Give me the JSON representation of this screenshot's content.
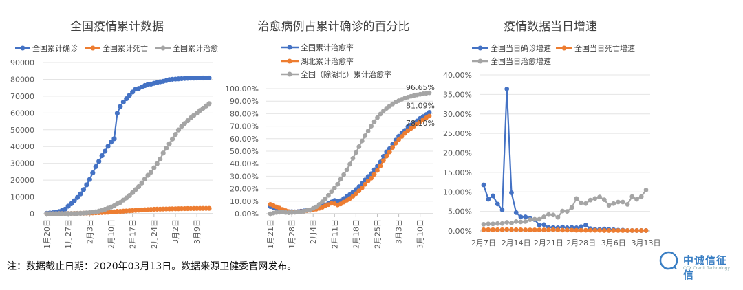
{
  "chart_data": [
    {
      "type": "line",
      "title": "全国疫情累计数据",
      "xlabel": "",
      "ylabel": "",
      "ylim": [
        0,
        90000
      ],
      "yticks": [
        "0",
        "10000",
        "20000",
        "30000",
        "40000",
        "50000",
        "60000",
        "70000",
        "80000",
        "90000"
      ],
      "xticks": [
        "1月20日",
        "1月27日",
        "2月3日",
        "2月10日",
        "2月17日",
        "2月24日",
        "3月2日",
        "3月9日"
      ],
      "legend_position": "top",
      "series": [
        {
          "name": "全国累计确诊",
          "color": "#4472c4",
          "values": [
            291,
            440,
            571,
            830,
            1287,
            1975,
            2744,
            4515,
            5974,
            7711,
            9692,
            11791,
            14380,
            17205,
            20438,
            24324,
            28018,
            31161,
            34546,
            37198,
            40171,
            42638,
            44653,
            59804,
            63851,
            66492,
            68500,
            70548,
            72436,
            74185,
            74576,
            75465,
            76288,
            76936,
            77150,
            77658,
            78064,
            78497,
            78824,
            79251,
            79824,
            80026,
            80151,
            80270,
            80409,
            80552,
            80651,
            80695,
            80735,
            80754,
            80778,
            80793,
            80813,
            80824
          ]
        },
        {
          "name": "全国累计死亡",
          "color": "#ed7d31",
          "values": [
            6,
            9,
            17,
            25,
            41,
            56,
            80,
            106,
            132,
            170,
            213,
            259,
            304,
            361,
            425,
            490,
            563,
            636,
            722,
            811,
            908,
            1016,
            1113,
            1367,
            1380,
            1523,
            1665,
            1770,
            1868,
            2004,
            2118,
            2236,
            2345,
            2442,
            2592,
            2663,
            2715,
            2744,
            2788,
            2835,
            2870,
            2912,
            2943,
            2981,
            3012,
            3042,
            3070,
            3097,
            3119,
            3136,
            3158,
            3169,
            3176,
            3189
          ]
        },
        {
          "name": "全国累计治愈",
          "color": "#a5a5a5",
          "values": [
            25,
            25,
            28,
            34,
            38,
            49,
            51,
            60,
            103,
            124,
            171,
            243,
            328,
            475,
            632,
            892,
            1153,
            1540,
            2050,
            2649,
            3281,
            3996,
            4740,
            5911,
            6723,
            8096,
            9419,
            10844,
            12552,
            14376,
            16155,
            18264,
            20659,
            22888,
            24734,
            27323,
            29745,
            32495,
            36117,
            39002,
            41625,
            44462,
            47204,
            49856,
            52045,
            53726,
            55404,
            57065,
            58600,
            59897,
            61475,
            62793,
            64111,
            65541
          ]
        }
      ]
    },
    {
      "type": "line",
      "title": "治愈病例占累计确诊的百分比",
      "ylim": [
        0,
        100
      ],
      "yticks": [
        "0.00%",
        "10.00%",
        "20.00%",
        "30.00%",
        "40.00%",
        "50.00%",
        "60.00%",
        "70.00%",
        "80.00%",
        "90.00%",
        "100.00%"
      ],
      "xticks": [
        "1月21日",
        "1月28日",
        "2月4日",
        "2月11日",
        "2月18日",
        "2月25日",
        "3月3日",
        "3月10日"
      ],
      "legend_position": "top",
      "end_labels": [
        "81.09%",
        "78.10%",
        "96.65%"
      ],
      "series": [
        {
          "name": "全国累计治愈率",
          "color": "#4472c4",
          "values": [
            5.7,
            4.9,
            4.1,
            3.0,
            2.5,
            1.9,
            1.3,
            1.7,
            1.6,
            1.8,
            2.1,
            2.3,
            2.8,
            3.1,
            3.7,
            4.1,
            4.9,
            5.9,
            7.1,
            8.2,
            9.4,
            10.6,
            9.9,
            10.5,
            12.2,
            13.8,
            15.4,
            17.3,
            19.4,
            21.7,
            24.2,
            27.1,
            29.8,
            32.0,
            35.2,
            38.1,
            41.4,
            46.0,
            49.5,
            52.1,
            55.6,
            58.9,
            62.0,
            64.6,
            66.7,
            69.6,
            70.9,
            72.6,
            74.2,
            76.3,
            77.7,
            79.4,
            81.09
          ]
        },
        {
          "name": "湖北累计治愈率",
          "color": "#ed7d31",
          "values": [
            7.5,
            6.5,
            5.5,
            4.5,
            3.5,
            2.5,
            1.8,
            1.6,
            1.5,
            1.6,
            1.8,
            2.0,
            2.4,
            2.7,
            3.2,
            3.6,
            4.3,
            5.2,
            6.3,
            7.3,
            8.3,
            8.0,
            7.0,
            7.8,
            9.3,
            10.7,
            12.2,
            14.0,
            16.0,
            18.3,
            20.7,
            23.5,
            26.2,
            28.4,
            31.5,
            34.6,
            38.2,
            42.5,
            46.0,
            49.4,
            53.0,
            56.4,
            59.2,
            61.8,
            64.2,
            66.5,
            68.2,
            70.0,
            71.9,
            73.6,
            75.2,
            76.7,
            78.1
          ]
        },
        {
          "name": "全国（除湖北）累计治愈率",
          "color": "#a5a5a5",
          "values": [
            0,
            0.5,
            1.0,
            1.2,
            1.3,
            1.0,
            0.8,
            1.0,
            1.1,
            1.3,
            1.6,
            2.0,
            2.6,
            3.2,
            4.3,
            5.5,
            7.5,
            9.5,
            12.0,
            14.7,
            17.7,
            20.6,
            23.5,
            27.6,
            31.2,
            35.1,
            39.6,
            44.3,
            48.9,
            53.6,
            58.2,
            62.4,
            66.2,
            70.0,
            73.6,
            76.8,
            79.7,
            82.2,
            84.3,
            86.1,
            87.8,
            89.2,
            90.4,
            91.5,
            92.4,
            93.2,
            93.9,
            94.5,
            95.0,
            95.5,
            95.9,
            96.3,
            96.65
          ]
        }
      ]
    },
    {
      "type": "line",
      "title": "疫情数据当日增速",
      "ylim": [
        0,
        40
      ],
      "yticks": [
        "0.00%",
        "5.00%",
        "10.00%",
        "15.00%",
        "20.00%",
        "25.00%",
        "30.00%",
        "35.00%",
        "40.00%"
      ],
      "xticks": [
        "2月7日",
        "2月14日",
        "2月21日",
        "2月28日",
        "3月6日",
        "3月13日"
      ],
      "legend_position": "top",
      "series": [
        {
          "name": "全国当日确诊增速",
          "color": "#4472c4",
          "values": [
            11.8,
            8.1,
            9.0,
            6.9,
            5.4,
            36.4,
            9.8,
            4.7,
            3.6,
            3.6,
            3.2,
            2.9,
            1.5,
            1.6,
            0.9,
            0.9,
            0.8,
            1.0,
            0.8,
            0.9,
            0.8,
            1.1,
            1.5,
            0.6,
            0.4,
            0.4,
            0.5,
            0.4,
            0.3,
            0.2,
            0.2,
            0.1,
            0.1,
            0.1,
            0.1,
            0.1
          ]
        },
        {
          "name": "全国当日死亡增速",
          "color": "#ed7d31",
          "values": [
            0.3,
            0.3,
            0.3,
            0.3,
            0.3,
            0.35,
            0.3,
            0.3,
            0.3,
            0.25,
            0.25,
            0.25,
            0.25,
            0.25,
            0.25,
            0.3,
            0.25,
            0.2,
            0.2,
            0.2,
            0.15,
            0.15,
            0.15,
            0.15,
            0.15,
            0.15,
            0.1,
            0.1,
            0.1,
            0.1,
            0.1,
            0.1,
            0.1,
            0.1,
            0.1,
            0.1
          ]
        },
        {
          "name": "全国当日治愈增速",
          "color": "#a5a5a5",
          "values": [
            1.7,
            1.8,
            1.8,
            1.9,
            1.9,
            2.2,
            2.0,
            2.4,
            2.3,
            2.4,
            2.9,
            3.0,
            3.0,
            3.6,
            4.2,
            4.1,
            3.5,
            5.1,
            5.0,
            6.0,
            8.3,
            7.2,
            7.0,
            7.9,
            8.3,
            8.7,
            8.0,
            6.6,
            7.0,
            7.4,
            7.4,
            6.8,
            8.8,
            8.1,
            8.8,
            10.5
          ]
        }
      ]
    }
  ],
  "footer": {
    "note": "注：数据截止日期：2020年03月13日。数据来源卫健委官网发布。"
  },
  "logo": {
    "name": "中诚信征信",
    "subtitle": "CCX Credit Technology"
  }
}
